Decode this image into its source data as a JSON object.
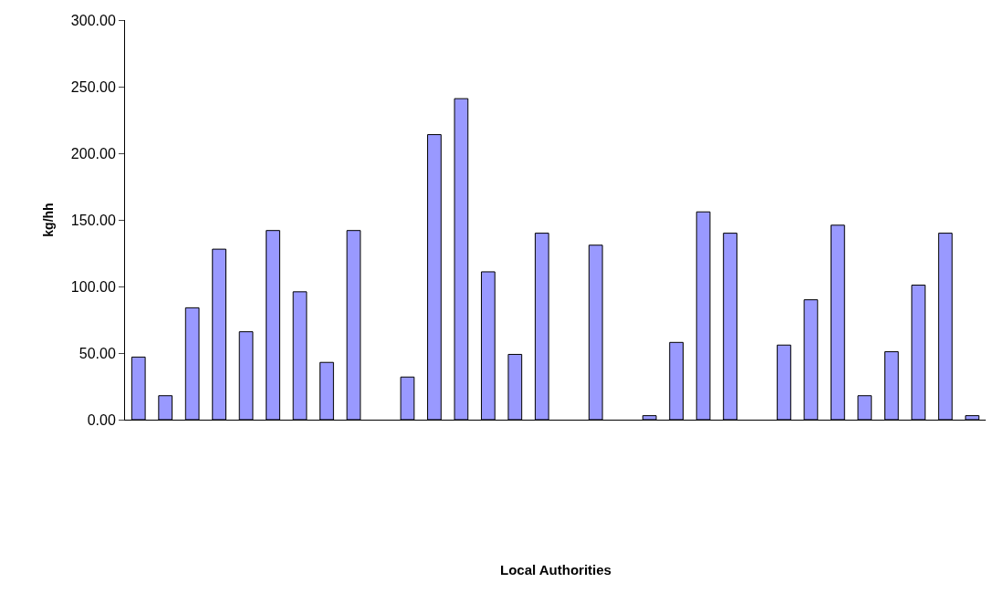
{
  "chart_data": {
    "type": "bar",
    "ylabel": "kg/hh",
    "annotations": [
      "Local Authorities"
    ],
    "categories": [
      null,
      null,
      null,
      null,
      null,
      null,
      null,
      null,
      null,
      null,
      null,
      null,
      null,
      null,
      null,
      null,
      null,
      null,
      null,
      null,
      null,
      null,
      null,
      null,
      null,
      null,
      null,
      null,
      null,
      null,
      null,
      null
    ],
    "values": [
      47,
      18,
      84,
      128,
      66,
      142,
      96,
      43,
      142,
      null,
      32,
      214,
      241,
      111,
      49,
      140,
      null,
      131,
      null,
      3,
      58,
      156,
      140,
      null,
      56,
      90,
      146,
      18,
      51,
      101,
      140,
      3
    ],
    "color": "#9999ff",
    "ylim": [
      0,
      300
    ],
    "yticks": [
      {
        "value": 0,
        "label": "0.00"
      },
      {
        "value": 50,
        "label": "50.00"
      },
      {
        "value": 100,
        "label": "100.00"
      },
      {
        "value": 150,
        "label": "150.00"
      },
      {
        "value": 200,
        "label": "200.00"
      },
      {
        "value": 250,
        "label": "250.00"
      },
      {
        "value": 300,
        "label": "300.00"
      }
    ],
    "tick_labels": "y"
  }
}
